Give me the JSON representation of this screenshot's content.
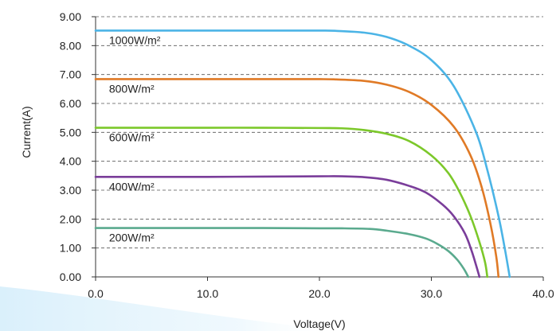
{
  "chart_data": {
    "type": "line",
    "xlabel": "Voltage(V)",
    "ylabel": "Current(A)",
    "xlim": [
      0,
      40
    ],
    "ylim": [
      0,
      9
    ],
    "x_ticks": [
      "0.0",
      "10.0",
      "20.0",
      "30.0",
      "40.0"
    ],
    "y_ticks": [
      "0.00",
      "1.00",
      "2.00",
      "3.00",
      "4.00",
      "5.00",
      "6.00",
      "7.00",
      "8.00",
      "9.00"
    ],
    "grid": "horizontal dashed",
    "series": [
      {
        "name": "1000W/m²",
        "color": "#4bb4e6",
        "x": [
          0,
          5,
          10,
          15,
          20,
          21.5,
          24,
          26,
          28,
          30,
          32,
          34,
          35,
          36,
          36.6,
          37.0
        ],
        "y": [
          8.52,
          8.52,
          8.52,
          8.52,
          8.52,
          8.51,
          8.45,
          8.3,
          8.0,
          7.5,
          6.6,
          5.0,
          3.7,
          2.1,
          0.9,
          0
        ]
      },
      {
        "name": "800W/m²",
        "color": "#e07a26",
        "x": [
          0,
          5,
          10,
          15,
          20,
          21.5,
          24,
          26,
          28,
          30,
          32,
          33.5,
          34.5,
          35.3,
          35.8,
          36.0
        ],
        "y": [
          6.84,
          6.84,
          6.84,
          6.84,
          6.84,
          6.83,
          6.78,
          6.65,
          6.4,
          5.95,
          5.2,
          4.2,
          3.1,
          1.8,
          0.7,
          0
        ]
      },
      {
        "name": "600W/m²",
        "color": "#7cc82a",
        "x": [
          0,
          5,
          10,
          15,
          20,
          22,
          24,
          26,
          28,
          30,
          31.5,
          32.5,
          33.5,
          34.3,
          34.8,
          35.0
        ],
        "y": [
          5.16,
          5.16,
          5.16,
          5.16,
          5.15,
          5.14,
          5.08,
          4.95,
          4.7,
          4.2,
          3.6,
          2.95,
          2.1,
          1.2,
          0.5,
          0
        ]
      },
      {
        "name": "400W/m²",
        "color": "#7a3d9a",
        "x": [
          0,
          5,
          10,
          15,
          20,
          22,
          24,
          26,
          28,
          29.5,
          31,
          32,
          33,
          33.6,
          34.0,
          34.3
        ],
        "y": [
          3.46,
          3.46,
          3.46,
          3.47,
          3.48,
          3.48,
          3.45,
          3.36,
          3.15,
          2.92,
          2.5,
          2.1,
          1.5,
          0.9,
          0.4,
          0
        ]
      },
      {
        "name": "200W/m²",
        "color": "#5aaa8e",
        "x": [
          0,
          5,
          10,
          15,
          20,
          22,
          24.5,
          26,
          28,
          29.5,
          30.5,
          31.5,
          32.3,
          32.9,
          33.3
        ],
        "y": [
          1.69,
          1.69,
          1.69,
          1.69,
          1.68,
          1.68,
          1.66,
          1.6,
          1.48,
          1.33,
          1.15,
          0.9,
          0.6,
          0.28,
          0
        ]
      }
    ]
  }
}
